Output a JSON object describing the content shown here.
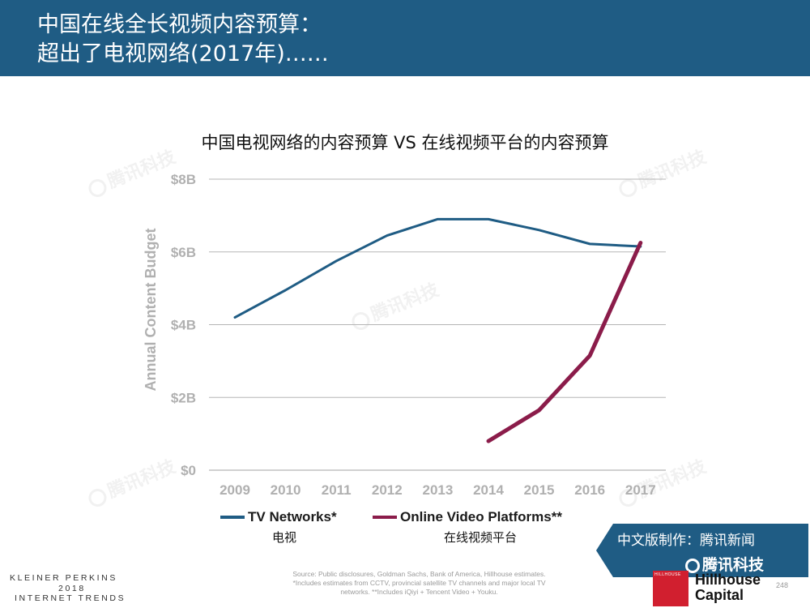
{
  "header": {
    "line1": "中国在线全长视频内容预算：",
    "line2": "超出了电视网络(2017年)……"
  },
  "chart_data": {
    "type": "line",
    "title": "中国电视网络的内容预算 VS 在线视频平台的内容预算",
    "ylabel": "Annual Content Budget",
    "xlabel": "",
    "x": [
      "2009",
      "2010",
      "2011",
      "2012",
      "2013",
      "2014",
      "2015",
      "2016",
      "2017"
    ],
    "ylim": [
      0,
      8
    ],
    "yticks": [
      0,
      2,
      4,
      6,
      8
    ],
    "ytick_labels": [
      "$0",
      "$2B",
      "$4B",
      "$6B",
      "$8B"
    ],
    "grid": true,
    "series": [
      {
        "name": "TV Networks*",
        "sub": "电视",
        "color": "#1f5c84",
        "values": [
          4.2,
          4.95,
          5.75,
          6.45,
          6.9,
          6.9,
          6.6,
          6.22,
          6.15
        ]
      },
      {
        "name": "Online Video Platforms**",
        "sub": "在线视频平台",
        "color": "#8b1c4a",
        "values": [
          null,
          null,
          null,
          null,
          null,
          0.8,
          1.65,
          3.15,
          6.25
        ]
      }
    ]
  },
  "source": "Source: Public disclosures, Goldman Sachs, Bank of America, Hillhouse estimates. *Includes estimates from CCTV, provincial satellite TV channels and major local TV networks. **Includes iQiyi + Tencent Video + Youku.",
  "footer": {
    "kp1": "KLEINER PERKINS",
    "kp2": "2018",
    "kp3": "INTERNET TRENDS",
    "badge_line1": "中文版制作：腾讯新闻",
    "badge_line2": "腾讯科技",
    "hillhouse_small": "HILLHOUSE",
    "hillhouse1": "Hillhouse",
    "hillhouse2": "Capital",
    "page": "248"
  },
  "watermark": "腾讯科技"
}
